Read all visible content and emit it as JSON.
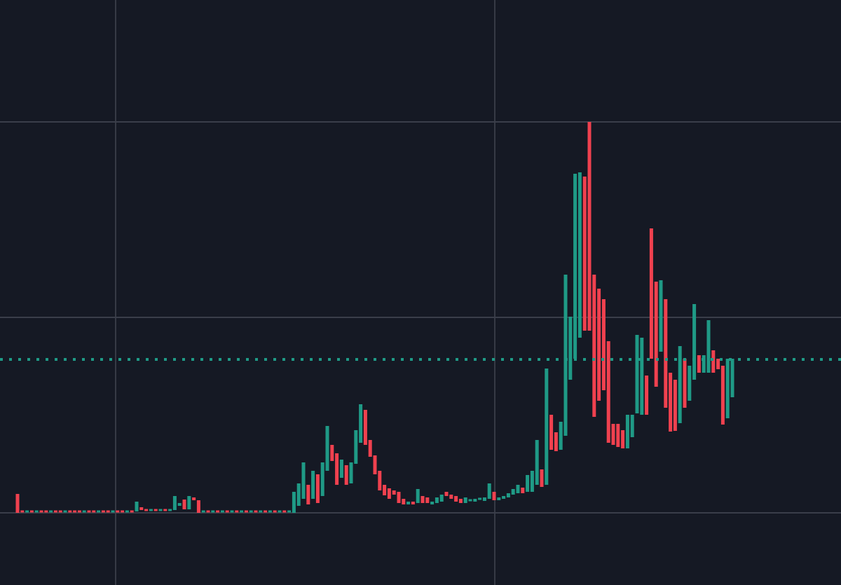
{
  "chart_data": {
    "type": "candlestick",
    "up_color": "#1f9a86",
    "down_color": "#f0414f",
    "open": [
      27,
      2,
      0,
      2,
      0,
      2,
      2,
      0,
      2,
      2,
      0,
      2,
      2,
      2,
      0,
      2,
      2,
      0,
      2,
      2,
      0,
      2,
      2,
      0,
      2,
      2,
      8,
      4,
      2,
      4,
      2,
      4,
      2,
      4,
      10,
      19,
      5,
      22,
      18,
      0,
      2,
      0,
      2,
      0,
      2,
      0,
      2,
      0,
      2,
      0,
      2,
      0,
      2,
      0,
      2,
      0,
      2,
      0,
      0,
      10,
      20,
      40,
      20,
      55,
      24,
      60,
      97,
      85,
      50,
      68,
      42,
      70,
      100,
      147,
      104,
      82,
      60,
      40,
      35,
      32,
      30,
      20,
      12,
      16,
      14,
      24,
      22,
      12,
      14,
      16,
      30,
      26,
      24,
      20,
      14,
      16,
      16,
      18,
      17,
      20,
      30,
      18,
      20,
      22,
      26,
      28,
      36,
      30,
      30,
      40,
      62,
      40,
      140,
      115,
      90,
      110,
      190,
      220,
      250,
      480,
      558,
      340,
      320,
      305,
      245,
      127,
      127,
      118,
      92,
      108,
      142,
      140,
      196,
      406,
      330,
      230,
      305,
      200,
      190,
      128,
      220,
      160,
      190,
      225,
      200,
      200,
      232,
      220,
      210,
      135,
      165
    ],
    "close": [
      0,
      0,
      2,
      0,
      2,
      0,
      0,
      2,
      0,
      0,
      2,
      0,
      0,
      0,
      2,
      0,
      0,
      2,
      0,
      0,
      2,
      0,
      0,
      2,
      0,
      16,
      4,
      2,
      4,
      2,
      4,
      2,
      4,
      24,
      14,
      5,
      24,
      18,
      0,
      2,
      0,
      2,
      0,
      2,
      0,
      2,
      0,
      2,
      0,
      2,
      0,
      2,
      0,
      2,
      0,
      2,
      0,
      2,
      30,
      42,
      72,
      12,
      60,
      14,
      72,
      124,
      74,
      40,
      76,
      40,
      72,
      118,
      155,
      97,
      80,
      55,
      32,
      25,
      20,
      26,
      14,
      12,
      16,
      12,
      34,
      14,
      14,
      16,
      22,
      26,
      24,
      20,
      16,
      14,
      22,
      18,
      20,
      20,
      22,
      42,
      18,
      22,
      24,
      28,
      34,
      40,
      28,
      54,
      60,
      104,
      37,
      206,
      90,
      88,
      130,
      340,
      280,
      484,
      486,
      260,
      260,
      137,
      160,
      175,
      100,
      97,
      94,
      92,
      140,
      140,
      254,
      250,
      140,
      220,
      180,
      332,
      150,
      116,
      117,
      238,
      150,
      210,
      298,
      200,
      225,
      275,
      200,
      205,
      126,
      220,
      220
    ],
    "ylim": [
      -103,
      732
    ],
    "yticks": [
      0,
      279,
      558
    ],
    "grid": true,
    "price_line": {
      "value": 219,
      "color": "#1f9a86"
    }
  }
}
